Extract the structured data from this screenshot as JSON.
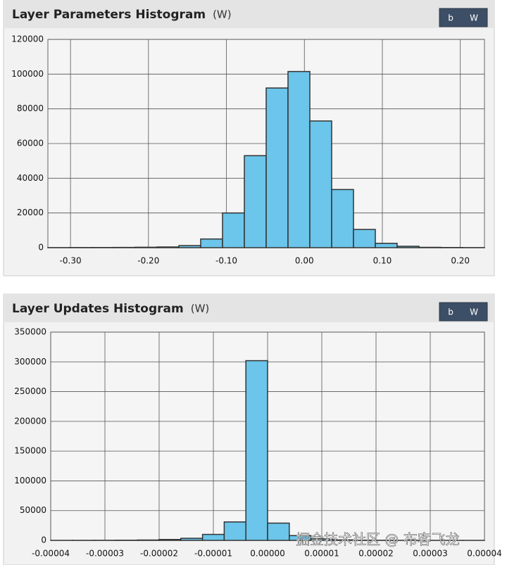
{
  "chart_data": [
    {
      "type": "histogram",
      "title": "Layer Parameters Histogram",
      "subtitle": "(W)",
      "buttons": [
        "b",
        "W"
      ],
      "bins": [
        -0.329,
        -0.301,
        -0.273,
        -0.245,
        -0.217,
        -0.189,
        -0.161,
        -0.133,
        -0.105,
        -0.077,
        -0.049,
        -0.021,
        0.007,
        0.035,
        0.063,
        0.091,
        0.119,
        0.147,
        0.175,
        0.203,
        0.231
      ],
      "values": [
        50,
        80,
        100,
        150,
        250,
        400,
        1200,
        5000,
        20000,
        53000,
        92000,
        101500,
        73000,
        33500,
        10500,
        2500,
        800,
        200,
        100,
        50
      ],
      "color": "#6cc5ea",
      "xlim": [
        -0.329,
        0.231
      ],
      "xticks": [
        {
          "value": -0.3,
          "label": "-0.30"
        },
        {
          "value": -0.2,
          "label": "-0.20"
        },
        {
          "value": -0.1,
          "label": "-0.10"
        },
        {
          "value": 0,
          "label": "0.00"
        },
        {
          "value": 0.1,
          "label": "0.10"
        },
        {
          "value": 0.2,
          "label": "0.20"
        }
      ],
      "ylim": [
        0,
        120000
      ],
      "yticks": [
        0,
        20000,
        40000,
        60000,
        80000,
        100000,
        120000
      ],
      "grid": true
    },
    {
      "type": "histogram",
      "title": "Layer Updates Histogram",
      "subtitle": "(W)",
      "buttons": [
        "b",
        "W"
      ],
      "bins": [
        -4e-05,
        -3.6e-05,
        -3.2e-05,
        -2.8e-05,
        -2.4e-05,
        -2e-05,
        -1.6e-05,
        -1.2e-05,
        -8e-06,
        -4e-06,
        0,
        4e-06,
        8e-06,
        1.2e-05,
        1.6e-05,
        2e-05,
        2.4e-05,
        2.8e-05,
        3.2e-05,
        3.6e-05,
        4e-05
      ],
      "values": [
        50,
        100,
        150,
        300,
        600,
        1500,
        3500,
        10000,
        31000,
        302000,
        29000,
        8000,
        2500,
        800,
        300,
        150,
        80,
        50,
        30,
        20
      ],
      "color": "#6cc5ea",
      "xlim": [
        -4e-05,
        4e-05
      ],
      "xticks": [
        -4e-05,
        -3e-05,
        -2e-05,
        -1e-05,
        {
          "value": 0,
          "label": "0.00000"
        },
        1e-05,
        2e-05,
        3e-05,
        4e-05
      ],
      "ylim": [
        0,
        350000
      ],
      "yticks": [
        0,
        50000,
        100000,
        150000,
        200000,
        250000,
        300000,
        350000
      ],
      "grid": true
    }
  ],
  "watermark": "掘金技术社区 @ 布客飞龙"
}
